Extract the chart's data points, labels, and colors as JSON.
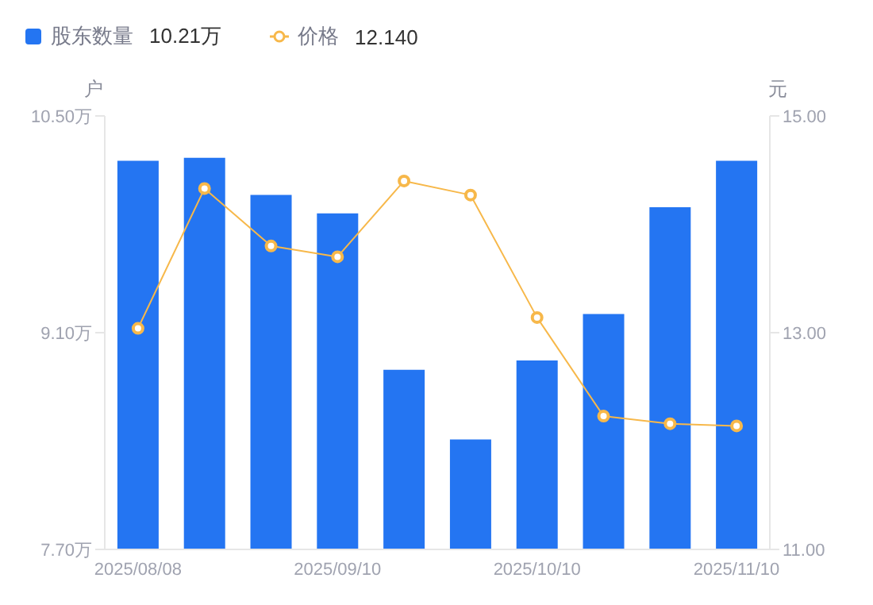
{
  "chart_data": {
    "type": "bar",
    "ylabel": "户",
    "y2label": "元",
    "categories": [
      "2025/08/08",
      null,
      null,
      "2025/09/10",
      null,
      null,
      "2025/10/10",
      null,
      null,
      "2025/11/10"
    ],
    "series": [
      {
        "name": "股东数量",
        "color": "#2475f2",
        "values": [
          10.21,
          10.23,
          9.99,
          9.87,
          8.86,
          8.41,
          8.92,
          9.22,
          9.91,
          10.21
        ]
      },
      {
        "name": "价格",
        "type": "line",
        "axis": "y2",
        "color": "#f7b84a",
        "marker": "circle",
        "values": [
          13.04,
          14.33,
          13.8,
          13.7,
          14.4,
          14.27,
          13.14,
          12.23,
          12.16,
          12.14
        ]
      }
    ],
    "annotations": [
      "10.21万",
      "12.140"
    ],
    "ylim": [
      7.7,
      10.5
    ],
    "yticks": [
      {
        "value": 7.7,
        "label": "7.70万"
      },
      {
        "value": 9.1,
        "label": "9.10万"
      },
      {
        "value": 10.5,
        "label": "10.50万"
      }
    ],
    "y2lim": [
      11,
      15
    ],
    "y2ticks": [
      {
        "value": 11,
        "label": "11.00"
      },
      {
        "value": 13,
        "label": "13.00"
      },
      {
        "value": 15,
        "label": "15.00"
      }
    ],
    "legend": "top left",
    "grid": false
  }
}
